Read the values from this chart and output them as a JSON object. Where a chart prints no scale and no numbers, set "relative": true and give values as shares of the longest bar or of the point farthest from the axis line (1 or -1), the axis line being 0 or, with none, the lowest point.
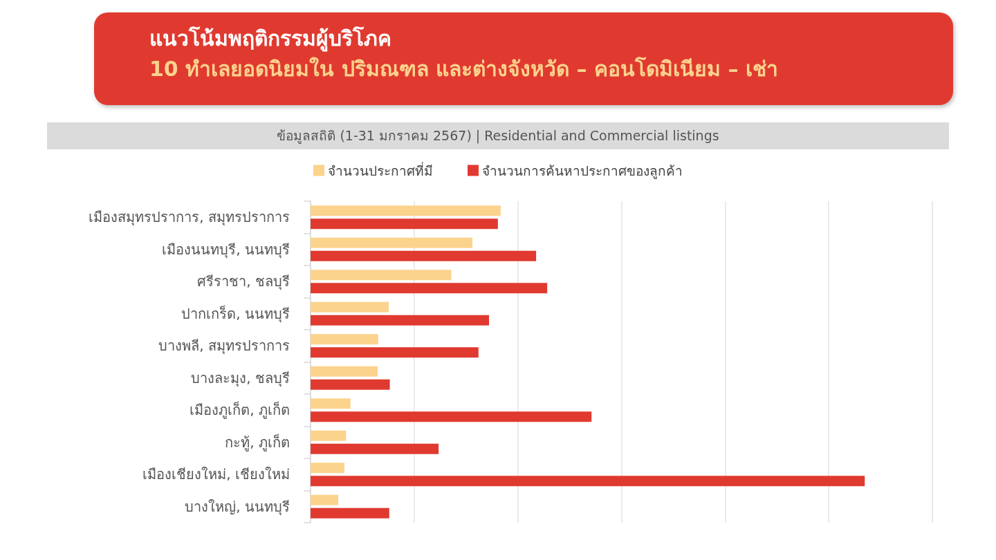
{
  "chart_data": {
    "type": "bar",
    "orientation": "horizontal",
    "relative": true,
    "title": "แนวโน้มพฤติกรรมผู้บริโภค",
    "subtitle": "10 ทำเลยอดนิยมใน ปริมณฑล และต่างจังหวัด – คอนโดมิเนียม – เช่า",
    "annotations": [
      "ข้อมูลสถิติ (1-31 มกราคม 2567) | Residential and Commercial listings"
    ],
    "categories": [
      "เมืองสมุทรปราการ, สมุทรปราการ",
      "เมืองนนทบุรี, นนทบุรี",
      "ศรีราชา, ชลบุรี",
      "ปากเกร็ด, นนทบุรี",
      "บางพลี, สมุทรปราการ",
      "บางละมุง, ชลบุรี",
      "เมืองภูเก็ต, ภูเก็ต",
      "กะทู้, ภูเก็ต",
      "เมืองเชียงใหม่, เชียงใหม่",
      "บางใหญ่, นนทบุรี"
    ],
    "series": [
      {
        "name": "จำนวนประกาศที่มี",
        "color": "#fbd38d",
        "values": [
          0.343,
          0.292,
          0.254,
          0.141,
          0.122,
          0.121,
          0.072,
          0.064,
          0.061,
          0.05
        ]
      },
      {
        "name": "จำนวนการค้นหาประกาศของลูกค้า",
        "color": "#e03a30",
        "values": [
          0.338,
          0.407,
          0.427,
          0.322,
          0.303,
          0.143,
          0.507,
          0.231,
          1,
          0.142
        ]
      }
    ],
    "grid": "x",
    "legend": "top"
  }
}
